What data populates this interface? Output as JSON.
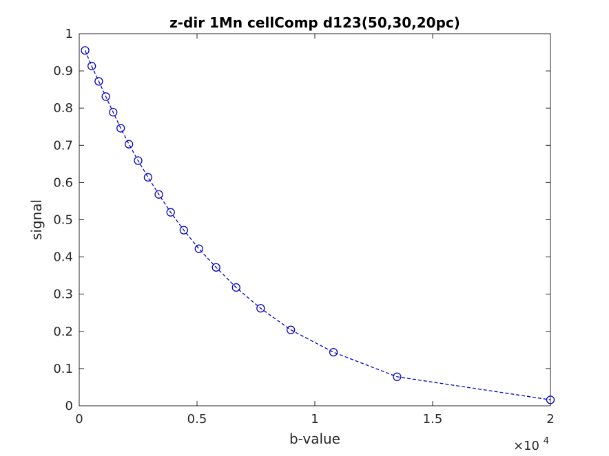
{
  "chart_data": {
    "type": "line",
    "title": "z-dir 1Mn cellComp d123(50,30,20pc)",
    "xlabel": "b-value",
    "ylabel": "signal",
    "x_multiplier_label": "×10",
    "x_multiplier_exponent": "4",
    "xlim": [
      0,
      20000
    ],
    "ylim": [
      0,
      1
    ],
    "x_ticks": [
      0,
      5000,
      10000,
      15000,
      20000
    ],
    "x_tick_labels": [
      "0",
      "0.5",
      "1",
      "1.5",
      "2"
    ],
    "y_ticks": [
      0,
      0.1,
      0.2,
      0.3,
      0.4,
      0.5,
      0.6,
      0.7,
      0.8,
      0.9,
      1
    ],
    "y_tick_labels": [
      "0",
      "0.1",
      "0.2",
      "0.3",
      "0.4",
      "0.5",
      "0.6",
      "0.7",
      "0.8",
      "0.9",
      "1"
    ],
    "grid": false,
    "series": [
      {
        "color": "#0000cc",
        "line_style": "dashed",
        "marker": "circle",
        "x": [
          250,
          530,
          830,
          1130,
          1440,
          1760,
          2110,
          2500,
          2920,
          3380,
          3880,
          4440,
          5080,
          5810,
          6660,
          7700,
          8980,
          10790,
          13490,
          20000
        ],
        "y": [
          0.955,
          0.913,
          0.872,
          0.831,
          0.789,
          0.746,
          0.703,
          0.659,
          0.614,
          0.568,
          0.52,
          0.472,
          0.422,
          0.372,
          0.318,
          0.262,
          0.204,
          0.144,
          0.078,
          0.016
        ]
      }
    ]
  }
}
